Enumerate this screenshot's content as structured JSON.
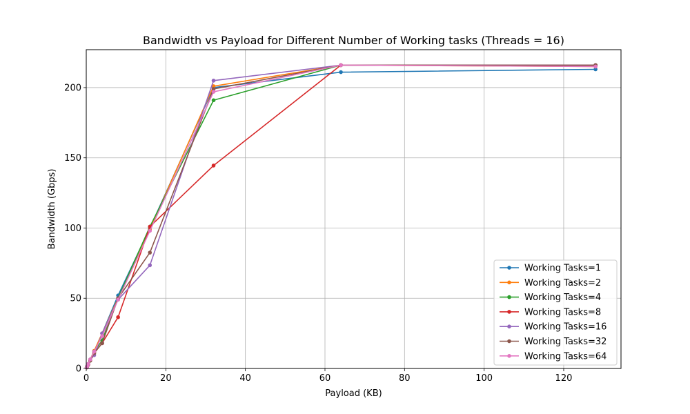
{
  "chart_data": {
    "type": "line",
    "title": "Bandwidth vs Payload for Different Number of Working tasks (Threads = 16)",
    "xlabel": "Payload (KB)",
    "ylabel": "Bandwidth (Gbps)",
    "xlim": [
      0,
      134.4
    ],
    "ylim": [
      0,
      227
    ],
    "xticks": [
      0,
      20,
      40,
      60,
      80,
      100,
      120
    ],
    "yticks": [
      0,
      50,
      100,
      150,
      200
    ],
    "grid": true,
    "legend_position": "lower-right",
    "x": [
      0.125,
      0.25,
      0.5,
      1,
      2,
      4,
      8,
      16,
      32,
      64,
      128
    ],
    "series": [
      {
        "name": "Working Tasks=1",
        "color": "#1f77b4",
        "values": [
          0.8,
          1.6,
          3.2,
          6.4,
          12.5,
          25,
          52,
          100,
          200,
          211,
          213
        ]
      },
      {
        "name": "Working Tasks=2",
        "color": "#ff7f0e",
        "values": [
          0.8,
          1.6,
          3.2,
          6.3,
          12.5,
          25,
          50,
          99,
          201,
          216,
          215
        ]
      },
      {
        "name": "Working Tasks=4",
        "color": "#2ca02c",
        "values": [
          0.8,
          1.6,
          3.1,
          6.2,
          12,
          20,
          50,
          101,
          191,
          216,
          216
        ]
      },
      {
        "name": "Working Tasks=8",
        "color": "#d62728",
        "values": [
          0.7,
          1.4,
          2.8,
          5.8,
          11,
          18,
          36.5,
          101,
          144.5,
          216,
          216
        ]
      },
      {
        "name": "Working Tasks=16",
        "color": "#9467bd",
        "values": [
          0.8,
          1.6,
          3.2,
          6.1,
          9.5,
          25,
          49,
          73.5,
          205,
          216,
          216
        ]
      },
      {
        "name": "Working Tasks=32",
        "color": "#8c564b",
        "values": [
          0.7,
          1.4,
          2.8,
          5.5,
          11,
          18,
          50,
          82.5,
          199,
          216,
          216
        ]
      },
      {
        "name": "Working Tasks=64",
        "color": "#e377c2",
        "values": [
          0.8,
          1.6,
          3.2,
          6.4,
          12,
          23,
          49,
          98,
          197,
          216,
          215
        ]
      }
    ]
  }
}
